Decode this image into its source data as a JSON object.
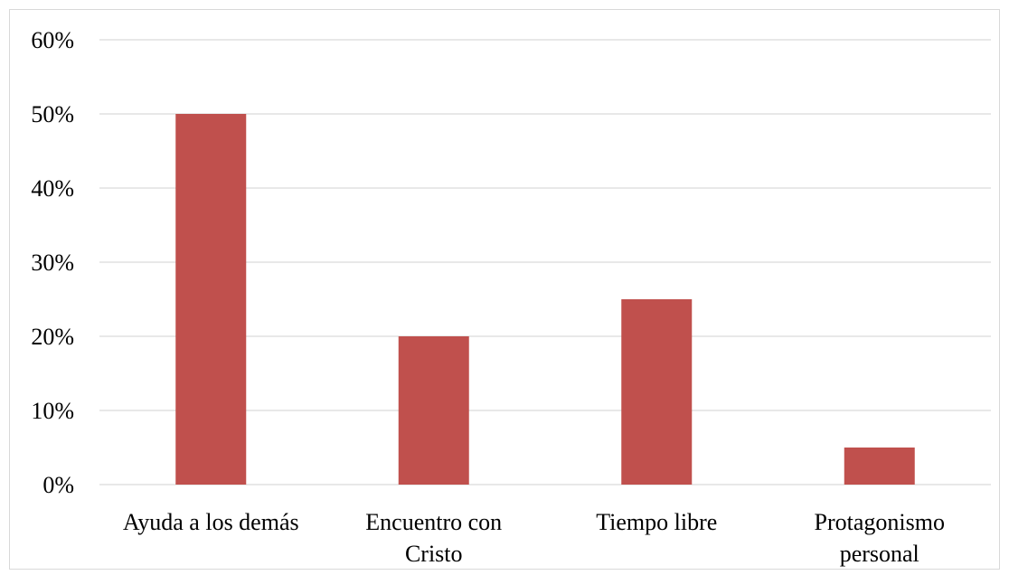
{
  "chart_data": {
    "type": "bar",
    "categories": [
      [
        "Ayuda a los demás"
      ],
      [
        "Encuentro con",
        "Cristo"
      ],
      [
        "Tiempo libre"
      ],
      [
        "Protagonismo",
        "personal"
      ]
    ],
    "values": [
      50,
      20,
      25,
      5
    ],
    "y_ticks": [
      "0%",
      "10%",
      "20%",
      "30%",
      "40%",
      "50%",
      "60%"
    ],
    "ylim": [
      0,
      60
    ],
    "grid": true,
    "legend": "none",
    "bar_color": "#c0504d",
    "grid_color": "#d9d9d9"
  }
}
